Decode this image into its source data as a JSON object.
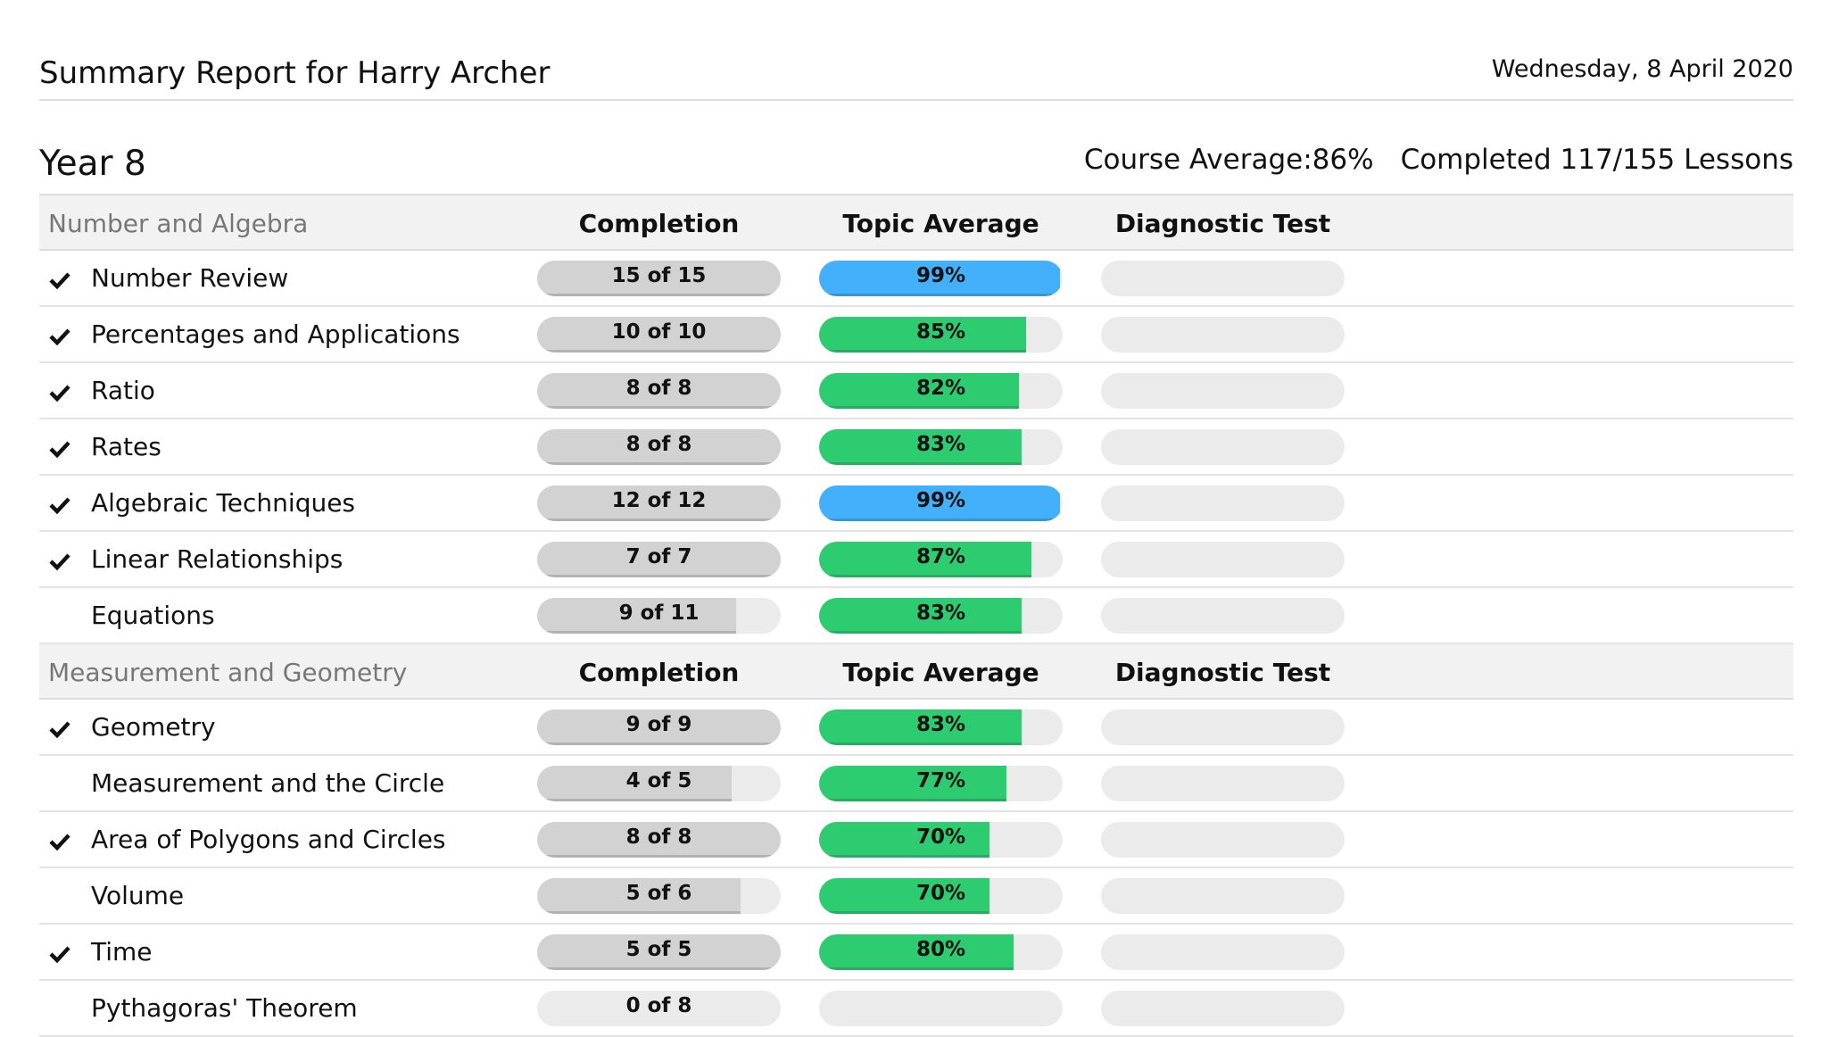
{
  "header": {
    "title": "Summary Report for Harry Archer",
    "date": "Wednesday, 8 April 2020"
  },
  "course": {
    "name": "Year 8",
    "average": "Course Average:86%",
    "completed": "Completed 117/155 Lessons"
  },
  "sections": [
    {
      "name": "Number and Algebra",
      "columns": [
        "Completion",
        "Topic Average",
        "Diagnostic Test"
      ],
      "rows": [
        {
          "topic": "Number Review",
          "complete": true,
          "completion": {
            "done": 15,
            "total": 15,
            "label": "15 of 15"
          },
          "average": {
            "value": 99,
            "label": "99%",
            "color": "#42b0fb"
          }
        },
        {
          "topic": "Percentages and Applications",
          "complete": true,
          "completion": {
            "done": 10,
            "total": 10,
            "label": "10 of 10"
          },
          "average": {
            "value": 85,
            "label": "85%",
            "color": "#2ecc71"
          }
        },
        {
          "topic": "Ratio",
          "complete": true,
          "completion": {
            "done": 8,
            "total": 8,
            "label": "8 of 8"
          },
          "average": {
            "value": 82,
            "label": "82%",
            "color": "#2ecc71"
          }
        },
        {
          "topic": "Rates",
          "complete": true,
          "completion": {
            "done": 8,
            "total": 8,
            "label": "8 of 8"
          },
          "average": {
            "value": 83,
            "label": "83%",
            "color": "#2ecc71"
          }
        },
        {
          "topic": "Algebraic Techniques",
          "complete": true,
          "completion": {
            "done": 12,
            "total": 12,
            "label": "12 of 12"
          },
          "average": {
            "value": 99,
            "label": "99%",
            "color": "#42b0fb"
          }
        },
        {
          "topic": "Linear Relationships",
          "complete": true,
          "completion": {
            "done": 7,
            "total": 7,
            "label": "7 of 7"
          },
          "average": {
            "value": 87,
            "label": "87%",
            "color": "#2ecc71"
          }
        },
        {
          "topic": "Equations",
          "complete": false,
          "completion": {
            "done": 9,
            "total": 11,
            "label": "9 of 11"
          },
          "average": {
            "value": 83,
            "label": "83%",
            "color": "#2ecc71"
          }
        }
      ]
    },
    {
      "name": "Measurement and Geometry",
      "columns": [
        "Completion",
        "Topic Average",
        "Diagnostic Test"
      ],
      "rows": [
        {
          "topic": "Geometry",
          "complete": true,
          "completion": {
            "done": 9,
            "total": 9,
            "label": "9 of 9"
          },
          "average": {
            "value": 83,
            "label": "83%",
            "color": "#2ecc71"
          }
        },
        {
          "topic": "Measurement and the Circle",
          "complete": false,
          "completion": {
            "done": 4,
            "total": 5,
            "label": "4 of 5"
          },
          "average": {
            "value": 77,
            "label": "77%",
            "color": "#2ecc71"
          }
        },
        {
          "topic": "Area of Polygons and Circles",
          "complete": true,
          "completion": {
            "done": 8,
            "total": 8,
            "label": "8 of 8"
          },
          "average": {
            "value": 70,
            "label": "70%",
            "color": "#2ecc71"
          }
        },
        {
          "topic": "Volume",
          "complete": false,
          "completion": {
            "done": 5,
            "total": 6,
            "label": "5 of 6"
          },
          "average": {
            "value": 70,
            "label": "70%",
            "color": "#2ecc71"
          }
        },
        {
          "topic": "Time",
          "complete": true,
          "completion": {
            "done": 5,
            "total": 5,
            "label": "5 of 5"
          },
          "average": {
            "value": 80,
            "label": "80%",
            "color": "#2ecc71"
          }
        },
        {
          "topic": "Pythagoras' Theorem",
          "complete": false,
          "completion": {
            "done": 0,
            "total": 8,
            "label": "0 of 8"
          },
          "average": {
            "value": null,
            "label": null,
            "color": "#2ecc71"
          }
        }
      ]
    }
  ]
}
